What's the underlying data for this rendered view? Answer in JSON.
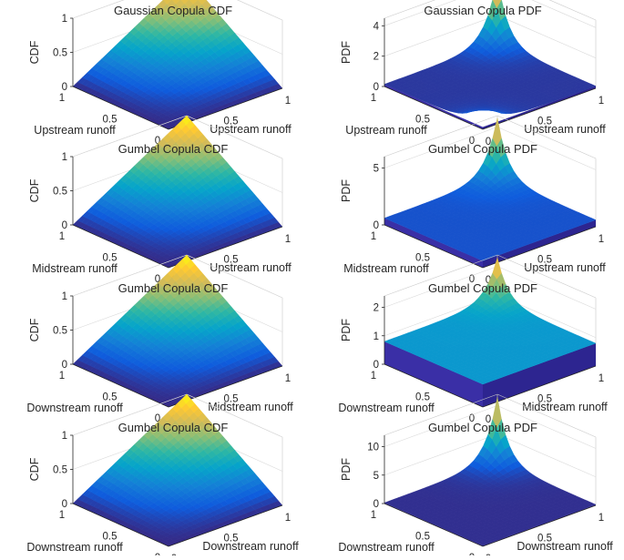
{
  "chart_data": [
    {
      "type": "surface",
      "kind": "cdf",
      "title": "Gaussian Copula CDF",
      "xlabel": "Upstream runoff",
      "ylabel": "Upstream runoff",
      "zlabel": "CDF",
      "zlim": [
        0,
        1
      ],
      "zticks": [
        "0",
        "0.5",
        "1"
      ],
      "x_ticks": [
        "0",
        "0.5",
        "1"
      ],
      "y_ticks": [
        "0",
        "0.5",
        "1"
      ]
    },
    {
      "type": "surface",
      "kind": "pdf",
      "title": "Gaussian Copula PDF",
      "xlabel": "Upstream runoff",
      "ylabel": "Upstream runoff",
      "zlabel": "PDF",
      "zlim": [
        0,
        4.5
      ],
      "zticks": [
        "0",
        "2",
        "4"
      ],
      "peak": 4.5,
      "base": 0.15,
      "symmetric": true,
      "x_ticks": [
        "0",
        "0.5",
        "1"
      ],
      "y_ticks": [
        "0",
        "0.5",
        "1"
      ]
    },
    {
      "type": "surface",
      "kind": "cdf",
      "title": "Gumbel Copula CDF",
      "xlabel": "Upstream runoff",
      "ylabel": "Midstream runoff",
      "zlabel": "CDF",
      "zlim": [
        0,
        1
      ],
      "zticks": [
        "0",
        "0.5",
        "1"
      ],
      "x_ticks": [
        "0",
        "0.5",
        "1"
      ],
      "y_ticks": [
        "0",
        "0.5",
        "1"
      ]
    },
    {
      "type": "surface",
      "kind": "pdf",
      "title": "Gumbel Copula PDF",
      "xlabel": "Upstream runoff",
      "ylabel": "Midstream runoff",
      "zlabel": "PDF",
      "zlim": [
        0,
        6
      ],
      "zticks": [
        "0",
        "5"
      ],
      "peak": 5.8,
      "base": 0.6,
      "symmetric": false,
      "x_ticks": [
        "0",
        "0.5",
        "1"
      ],
      "y_ticks": [
        "0",
        "0.5",
        "1"
      ]
    },
    {
      "type": "surface",
      "kind": "cdf",
      "title": "Gumbel Copula CDF",
      "xlabel": "Midstream runoff",
      "ylabel": "Downstream runoff",
      "zlabel": "CDF",
      "zlim": [
        0,
        1
      ],
      "zticks": [
        "0",
        "0.5",
        "1"
      ],
      "x_ticks": [
        "0",
        "0.5",
        "1"
      ],
      "y_ticks": [
        "0",
        "0.5",
        "1"
      ]
    },
    {
      "type": "surface",
      "kind": "pdf",
      "title": "Gumbel Copula PDF",
      "xlabel": "Midstream runoff",
      "ylabel": "Downstream runoff",
      "zlabel": "PDF",
      "zlim": [
        0,
        2.4
      ],
      "zticks": [
        "0",
        "1",
        "2"
      ],
      "peak": 2.3,
      "base": 0.8,
      "symmetric": false,
      "x_ticks": [
        "0",
        "0.5",
        "1"
      ],
      "y_ticks": [
        "0",
        "0.5",
        "1"
      ]
    },
    {
      "type": "surface",
      "kind": "cdf",
      "title": "Gumbel Copula CDF",
      "xlabel": "Downstream runoff",
      "ylabel": "Downstream runoff",
      "zlabel": "CDF",
      "zlim": [
        0,
        1
      ],
      "zticks": [
        "0",
        "0.5",
        "1"
      ],
      "x_ticks": [
        "0",
        "0.5",
        "1"
      ],
      "y_ticks": [
        "0",
        "0.5",
        "1"
      ]
    },
    {
      "type": "surface",
      "kind": "pdf",
      "title": "Gumbel Copula PDF",
      "xlabel": "Downstream runoff",
      "ylabel": "Downstream runoff",
      "zlabel": "PDF",
      "zlim": [
        0,
        12
      ],
      "zticks": [
        "0",
        "5",
        "10"
      ],
      "peak": 11.5,
      "base": 0.15,
      "symmetric": false,
      "x_ticks": [
        "0",
        "0.5",
        "1"
      ],
      "y_ticks": [
        "0",
        "0.5",
        "1"
      ]
    }
  ],
  "colors": {
    "colormap": [
      "#352a87",
      "#0f5cdd",
      "#1481d6",
      "#06a4ca",
      "#2eb7a4",
      "#87bf77",
      "#d1bb59",
      "#fec832",
      "#f9fb0e"
    ],
    "pdf_side": "#3a2fa6",
    "axis": "#262626",
    "grid": "#d9d9d9"
  }
}
